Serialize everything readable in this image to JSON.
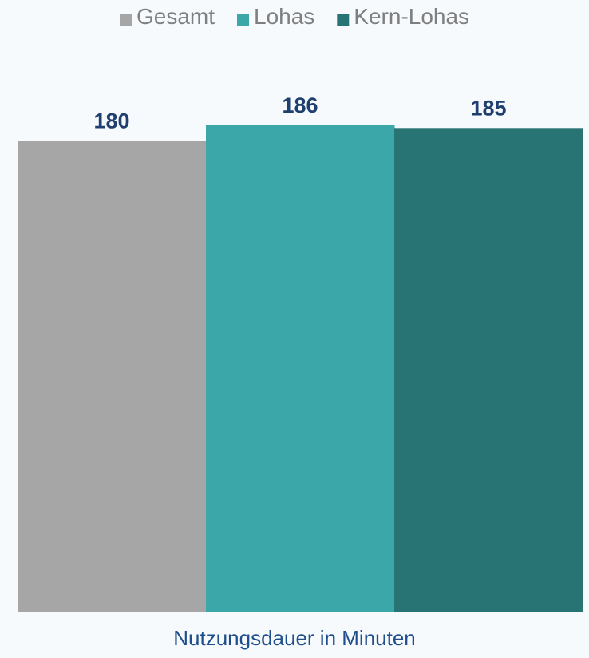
{
  "chart_data": {
    "type": "bar",
    "categories": [
      "Nutzungsdauer in Minuten"
    ],
    "series": [
      {
        "name": "Gesamt",
        "values": [
          180
        ],
        "color": "#a6a6a6"
      },
      {
        "name": "Lohas",
        "values": [
          186
        ],
        "color": "#3ca7a8"
      },
      {
        "name": "Kern-Lohas",
        "values": [
          185
        ],
        "color": "#287474"
      }
    ],
    "ylim": [
      0,
      186
    ],
    "grid": false,
    "legend_position": "top-center",
    "data_label_color": "#1f3f6e",
    "background": "#f7fafd"
  }
}
